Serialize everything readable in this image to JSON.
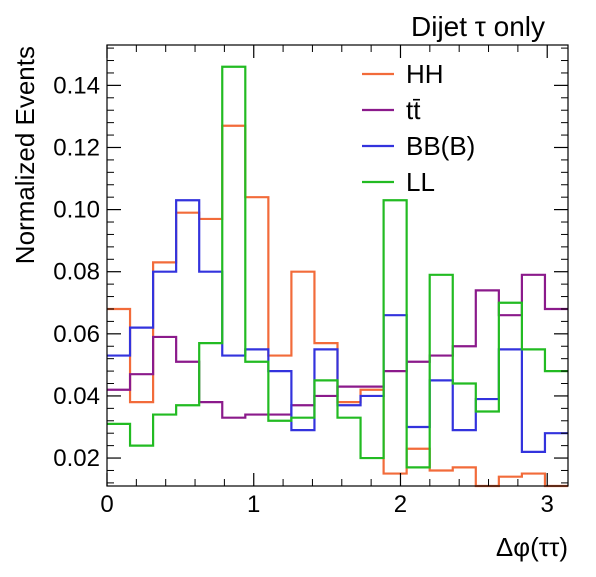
{
  "chart_data": {
    "type": "line",
    "style": "step-histogram",
    "title": "Dijet τ only",
    "xlabel": "Δφ(ττ)",
    "ylabel": "Normalized Events",
    "xlim": [
      0,
      3.1416
    ],
    "ylim": [
      0.011,
      0.153
    ],
    "xticks": [
      0,
      1,
      2,
      3
    ],
    "xtick_labels": [
      "0",
      "1",
      "2",
      "3"
    ],
    "yticks": [
      0.02,
      0.04,
      0.06,
      0.08,
      0.1,
      0.12,
      0.14
    ],
    "ytick_labels": [
      "0.02",
      "0.04",
      "0.06",
      "0.08",
      "0.10",
      "0.12",
      "0.14"
    ],
    "grid": false,
    "legend_position": "top-right",
    "bins": 20,
    "x_bin_edges": [
      0,
      0.1571,
      0.3142,
      0.4712,
      0.6283,
      0.7854,
      0.9425,
      1.0996,
      1.2566,
      1.4137,
      1.5708,
      1.7279,
      1.885,
      2.042,
      2.1991,
      2.3562,
      2.5133,
      2.6704,
      2.8274,
      2.9845,
      3.1416
    ],
    "series": [
      {
        "name": "HH",
        "color": "#f26b3a",
        "values": [
          0.068,
          0.038,
          0.083,
          0.099,
          0.097,
          0.127,
          0.104,
          0.053,
          0.08,
          0.057,
          0.038,
          0.042,
          0.015,
          0.023,
          0.016,
          0.017,
          0.011,
          0.014,
          0.015,
          0.011
        ]
      },
      {
        "name": "tt̄",
        "color": "#8b1a8b",
        "values": [
          0.042,
          0.047,
          0.059,
          0.051,
          0.038,
          0.033,
          0.034,
          0.034,
          0.037,
          0.04,
          0.043,
          0.043,
          0.048,
          0.051,
          0.053,
          0.056,
          0.074,
          0.066,
          0.079,
          0.068
        ]
      },
      {
        "name": "BB(B)",
        "color": "#3333dd",
        "values": [
          0.053,
          0.062,
          0.08,
          0.103,
          0.08,
          0.053,
          0.055,
          0.048,
          0.029,
          0.055,
          0.037,
          0.04,
          0.066,
          0.03,
          0.045,
          0.029,
          0.039,
          0.055,
          0.022,
          0.028
        ]
      },
      {
        "name": "LL",
        "color": "#22bb22",
        "values": [
          0.031,
          0.024,
          0.034,
          0.037,
          0.057,
          0.146,
          0.051,
          0.032,
          0.033,
          0.045,
          0.033,
          0.02,
          0.103,
          0.017,
          0.079,
          0.044,
          0.035,
          0.07,
          0.055,
          0.048
        ]
      }
    ]
  }
}
